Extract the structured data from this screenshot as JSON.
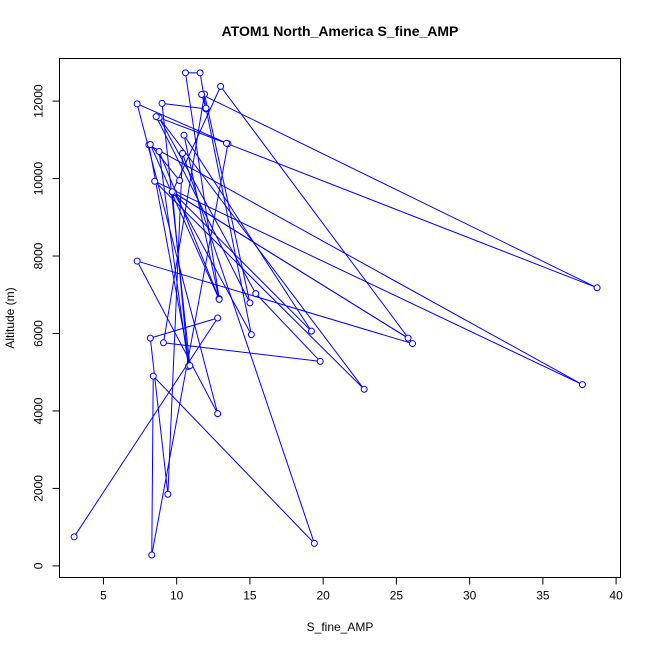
{
  "chart_data": {
    "type": "line",
    "title": "ATOM1 North_America S_fine_AMP",
    "xlabel": "S_fine_AMP",
    "ylabel": "Altitude (m)",
    "xlim": [
      2.0,
      40.3
    ],
    "ylim": [
      -300,
      13100
    ],
    "xticks": [
      5,
      10,
      15,
      20,
      25,
      30,
      35,
      40
    ],
    "yticks": [
      0,
      2000,
      4000,
      6000,
      8000,
      10000,
      12000
    ],
    "grid": false,
    "legend": "none",
    "series_color": "#0000ff",
    "markers": "open-circle",
    "series": [
      {
        "x": [
          3.0,
          12.8,
          8.2,
          9.4,
          10.4,
          19.4,
          8.4,
          8.3,
          13.5,
          7.3,
          12.8,
          7.3,
          26.1,
          13.0,
          9.7,
          10.8,
          8.8,
          12.9,
          10.6,
          11.6,
          12.0,
          9.0,
          10.9,
          8.1,
          37.7,
          8.5,
          22.8,
          8.8,
          15.4,
          19.8,
          9.1,
          11.9,
          15.0,
          8.6,
          13.4,
          38.7,
          11.7,
          12.0,
          15.1,
          9.8,
          25.8,
          9.7,
          19.2,
          10.5,
          12.9,
          8.2,
          10.2
        ],
        "y": [
          750,
          6400,
          5880,
          1850,
          10650,
          580,
          4900,
          280,
          10900,
          11930,
          3930,
          7870,
          5740,
          12380,
          9650,
          5150,
          10700,
          6900,
          12730,
          12730,
          11800,
          11940,
          5170,
          10870,
          4680,
          9930,
          4560,
          11570,
          7030,
          5280,
          5760,
          12180,
          6790,
          11600,
          10910,
          7180,
          12170,
          11820,
          5970,
          9640,
          5880,
          9660,
          6060,
          11120,
          6880,
          10880,
          9950
        ]
      }
    ]
  }
}
